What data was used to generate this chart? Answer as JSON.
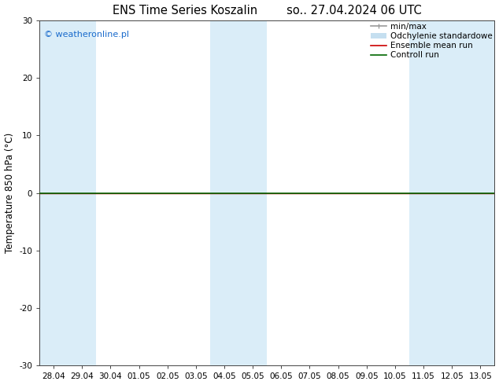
{
  "title_left": "ENS Time Series Koszalin",
  "title_right": "so.. 27.04.2024 06 UTC",
  "ylabel": "Temperature 850 hPa (°C)",
  "ylim": [
    -30,
    30
  ],
  "yticks": [
    -30,
    -20,
    -10,
    0,
    10,
    20,
    30
  ],
  "xlabel_dates": [
    "28.04",
    "29.04",
    "30.04",
    "01.05",
    "02.05",
    "03.05",
    "04.05",
    "05.05",
    "06.05",
    "07.05",
    "08.05",
    "09.05",
    "10.05",
    "11.05",
    "12.05",
    "13.05"
  ],
  "watermark": "© weatheronline.pl",
  "watermark_color": "#1a6bcc",
  "background_color": "#ffffff",
  "band_color": "#daedf8",
  "shaded_cols": [
    0,
    1,
    6,
    7,
    13,
    14,
    15
  ],
  "control_run_color": "#006600",
  "ensemble_mean_color": "#cc0000",
  "minmax_color": "#999999",
  "std_color": "#c5dff0",
  "legend_items": [
    "min/max",
    "Odchylenie standardowe",
    "Ensemble mean run",
    "Controll run"
  ],
  "title_fontsize": 10.5,
  "tick_fontsize": 7.5,
  "label_fontsize": 8.5,
  "legend_fontsize": 7.5
}
